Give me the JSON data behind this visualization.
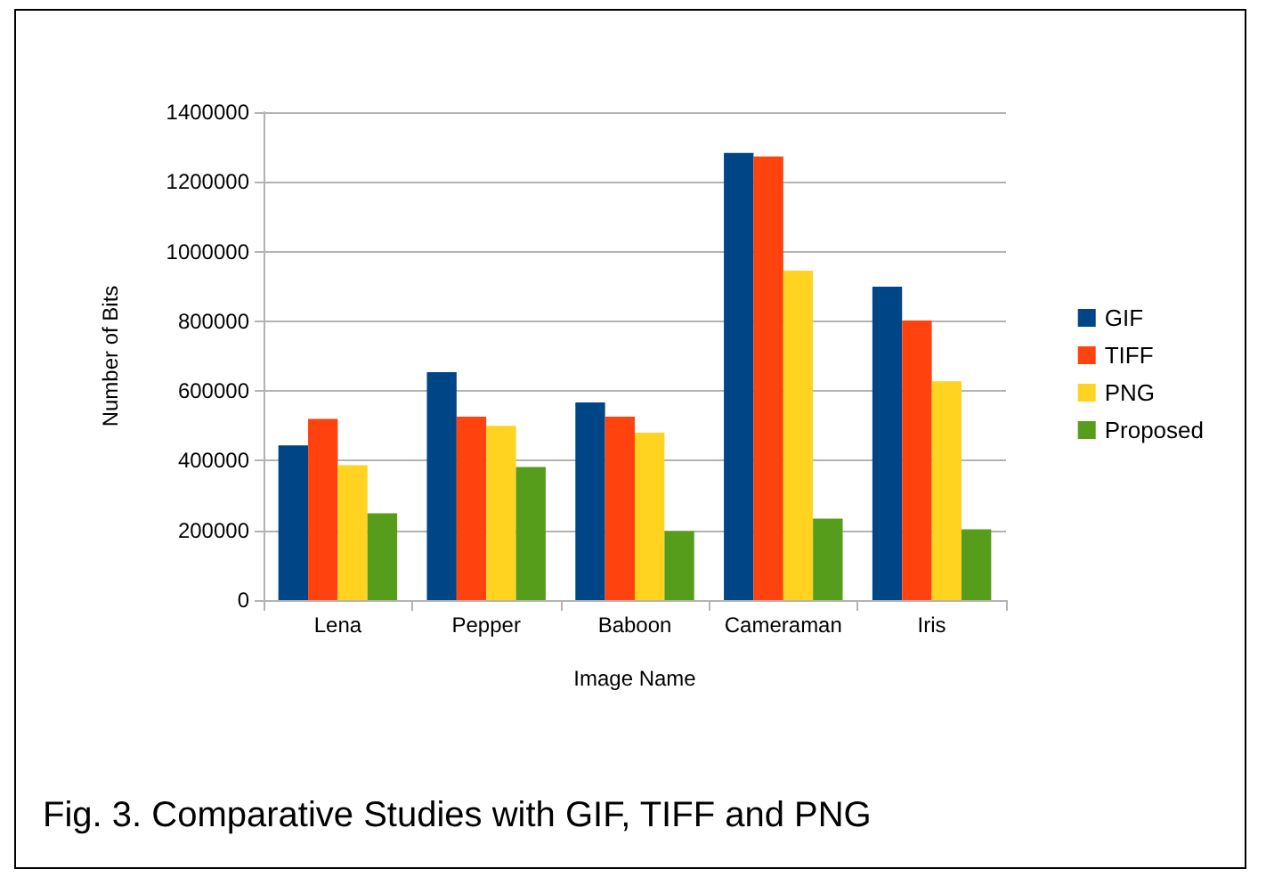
{
  "chart_data": {
    "type": "bar",
    "xlabel": "Image Name",
    "ylabel": "Number of Bits",
    "categories": [
      "Lena",
      "Pepper",
      "Baboon",
      "Cameraman",
      "Iris"
    ],
    "series": [
      {
        "name": "GIF",
        "color": "#004586",
        "values": [
          444000,
          654000,
          567000,
          1283000,
          899000
        ]
      },
      {
        "name": "TIFF",
        "color": "#ff420e",
        "values": [
          520000,
          526000,
          526000,
          1273000,
          802000
        ]
      },
      {
        "name": "PNG",
        "color": "#ffd320",
        "values": [
          387000,
          500000,
          480000,
          945000,
          628000
        ]
      },
      {
        "name": "Proposed",
        "color": "#579d1c",
        "values": [
          249000,
          382000,
          198000,
          234000,
          203000
        ]
      }
    ],
    "ylim": [
      0,
      1400000
    ],
    "yticks": [
      0,
      200000,
      400000,
      600000,
      800000,
      1000000,
      1200000,
      1400000
    ],
    "grid": "y",
    "legend": "right",
    "annotations": [
      "Fig. 3. Comparative Studies with GIF, TIFF and PNG"
    ]
  }
}
